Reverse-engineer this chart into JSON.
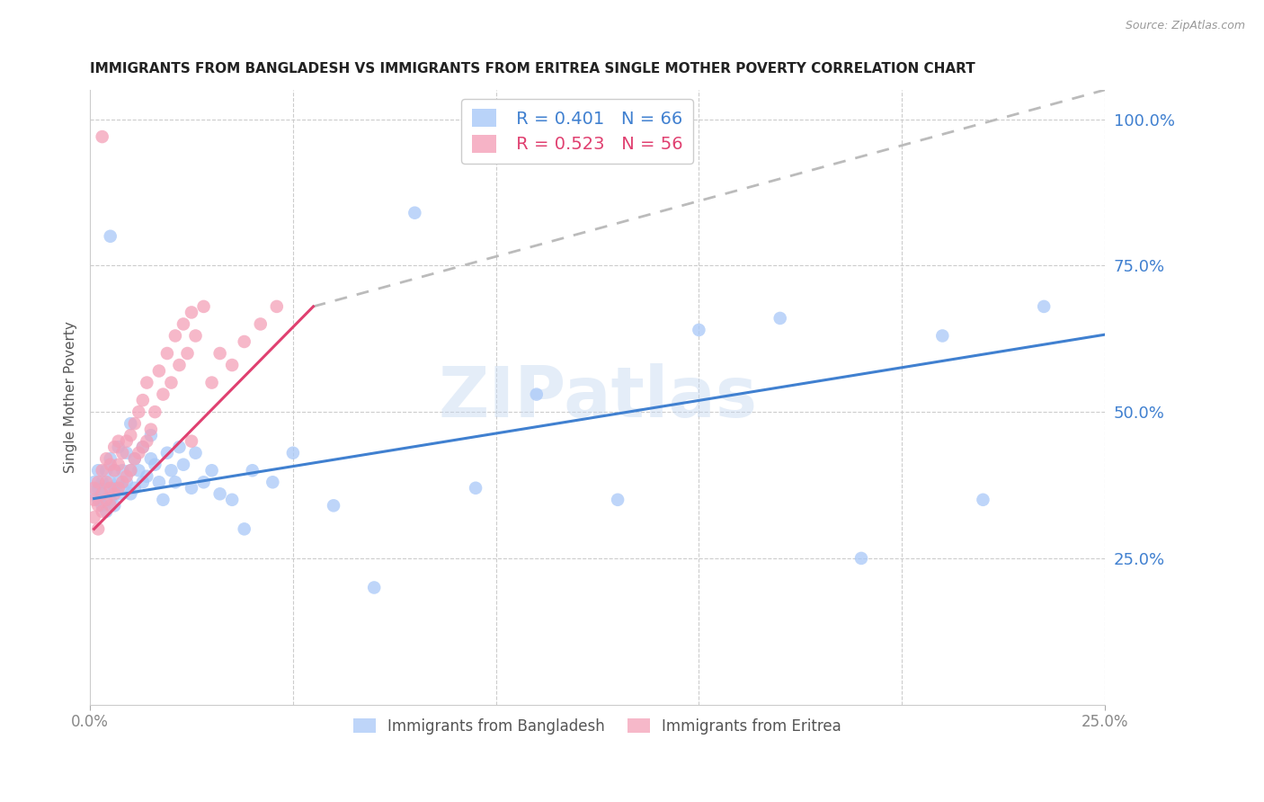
{
  "title": "IMMIGRANTS FROM BANGLADESH VS IMMIGRANTS FROM ERITREA SINGLE MOTHER POVERTY CORRELATION CHART",
  "source": "Source: ZipAtlas.com",
  "ylabel": "Single Mother Poverty",
  "right_yticks": [
    "100.0%",
    "75.0%",
    "50.0%",
    "25.0%"
  ],
  "right_ytick_vals": [
    1.0,
    0.75,
    0.5,
    0.25
  ],
  "xlim": [
    0.0,
    0.25
  ],
  "ylim": [
    0.0,
    1.05
  ],
  "bangladesh_color": "#A8C8F8",
  "eritrea_color": "#F4A0B8",
  "bangladesh_line_color": "#4080D0",
  "eritrea_line_color": "#E04070",
  "trendline_ext_color": "#BBBBBB",
  "legend_bangladesh_R": "0.401",
  "legend_bangladesh_N": "66",
  "legend_eritrea_R": "0.523",
  "legend_eritrea_N": "56",
  "watermark": "ZIPatlas",
  "background_color": "#FFFFFF",
  "grid_color": "#CCCCCC",
  "bgd_x": [
    0.001,
    0.001,
    0.002,
    0.002,
    0.002,
    0.003,
    0.003,
    0.003,
    0.004,
    0.004,
    0.004,
    0.005,
    0.005,
    0.005,
    0.006,
    0.006,
    0.006,
    0.007,
    0.007,
    0.007,
    0.008,
    0.008,
    0.009,
    0.009,
    0.01,
    0.01,
    0.011,
    0.011,
    0.012,
    0.013,
    0.013,
    0.014,
    0.015,
    0.015,
    0.016,
    0.017,
    0.018,
    0.019,
    0.02,
    0.021,
    0.022,
    0.023,
    0.025,
    0.026,
    0.028,
    0.03,
    0.032,
    0.035,
    0.038,
    0.04,
    0.045,
    0.05,
    0.06,
    0.07,
    0.08,
    0.095,
    0.11,
    0.13,
    0.15,
    0.17,
    0.19,
    0.21,
    0.22,
    0.235,
    0.01,
    0.005
  ],
  "bgd_y": [
    0.36,
    0.38,
    0.35,
    0.37,
    0.4,
    0.34,
    0.36,
    0.38,
    0.33,
    0.37,
    0.4,
    0.35,
    0.38,
    0.42,
    0.34,
    0.37,
    0.4,
    0.36,
    0.38,
    0.44,
    0.37,
    0.4,
    0.38,
    0.43,
    0.36,
    0.4,
    0.37,
    0.42,
    0.4,
    0.38,
    0.44,
    0.39,
    0.42,
    0.46,
    0.41,
    0.38,
    0.35,
    0.43,
    0.4,
    0.38,
    0.44,
    0.41,
    0.37,
    0.43,
    0.38,
    0.4,
    0.36,
    0.35,
    0.3,
    0.4,
    0.38,
    0.43,
    0.34,
    0.2,
    0.84,
    0.37,
    0.53,
    0.35,
    0.64,
    0.66,
    0.25,
    0.63,
    0.35,
    0.68,
    0.48,
    0.8
  ],
  "eri_x": [
    0.001,
    0.001,
    0.001,
    0.002,
    0.002,
    0.002,
    0.003,
    0.003,
    0.003,
    0.004,
    0.004,
    0.004,
    0.005,
    0.005,
    0.005,
    0.006,
    0.006,
    0.006,
    0.007,
    0.007,
    0.007,
    0.008,
    0.008,
    0.009,
    0.009,
    0.01,
    0.01,
    0.011,
    0.011,
    0.012,
    0.012,
    0.013,
    0.013,
    0.014,
    0.014,
    0.015,
    0.016,
    0.017,
    0.018,
    0.019,
    0.02,
    0.021,
    0.022,
    0.023,
    0.024,
    0.025,
    0.026,
    0.028,
    0.03,
    0.032,
    0.035,
    0.038,
    0.042,
    0.046,
    0.025,
    0.003
  ],
  "eri_y": [
    0.32,
    0.35,
    0.37,
    0.3,
    0.34,
    0.38,
    0.33,
    0.36,
    0.4,
    0.35,
    0.38,
    0.42,
    0.34,
    0.37,
    0.41,
    0.36,
    0.4,
    0.44,
    0.37,
    0.41,
    0.45,
    0.38,
    0.43,
    0.39,
    0.45,
    0.4,
    0.46,
    0.42,
    0.48,
    0.43,
    0.5,
    0.44,
    0.52,
    0.45,
    0.55,
    0.47,
    0.5,
    0.57,
    0.53,
    0.6,
    0.55,
    0.63,
    0.58,
    0.65,
    0.6,
    0.67,
    0.63,
    0.68,
    0.55,
    0.6,
    0.58,
    0.62,
    0.65,
    0.68,
    0.45,
    0.97
  ],
  "bgd_trendline": [
    0.001,
    0.25,
    0.352,
    0.632
  ],
  "eri_trendline_solid": [
    0.001,
    0.055,
    0.3,
    0.68
  ],
  "eri_trendline_ext": [
    0.055,
    0.25,
    0.68,
    1.3
  ]
}
